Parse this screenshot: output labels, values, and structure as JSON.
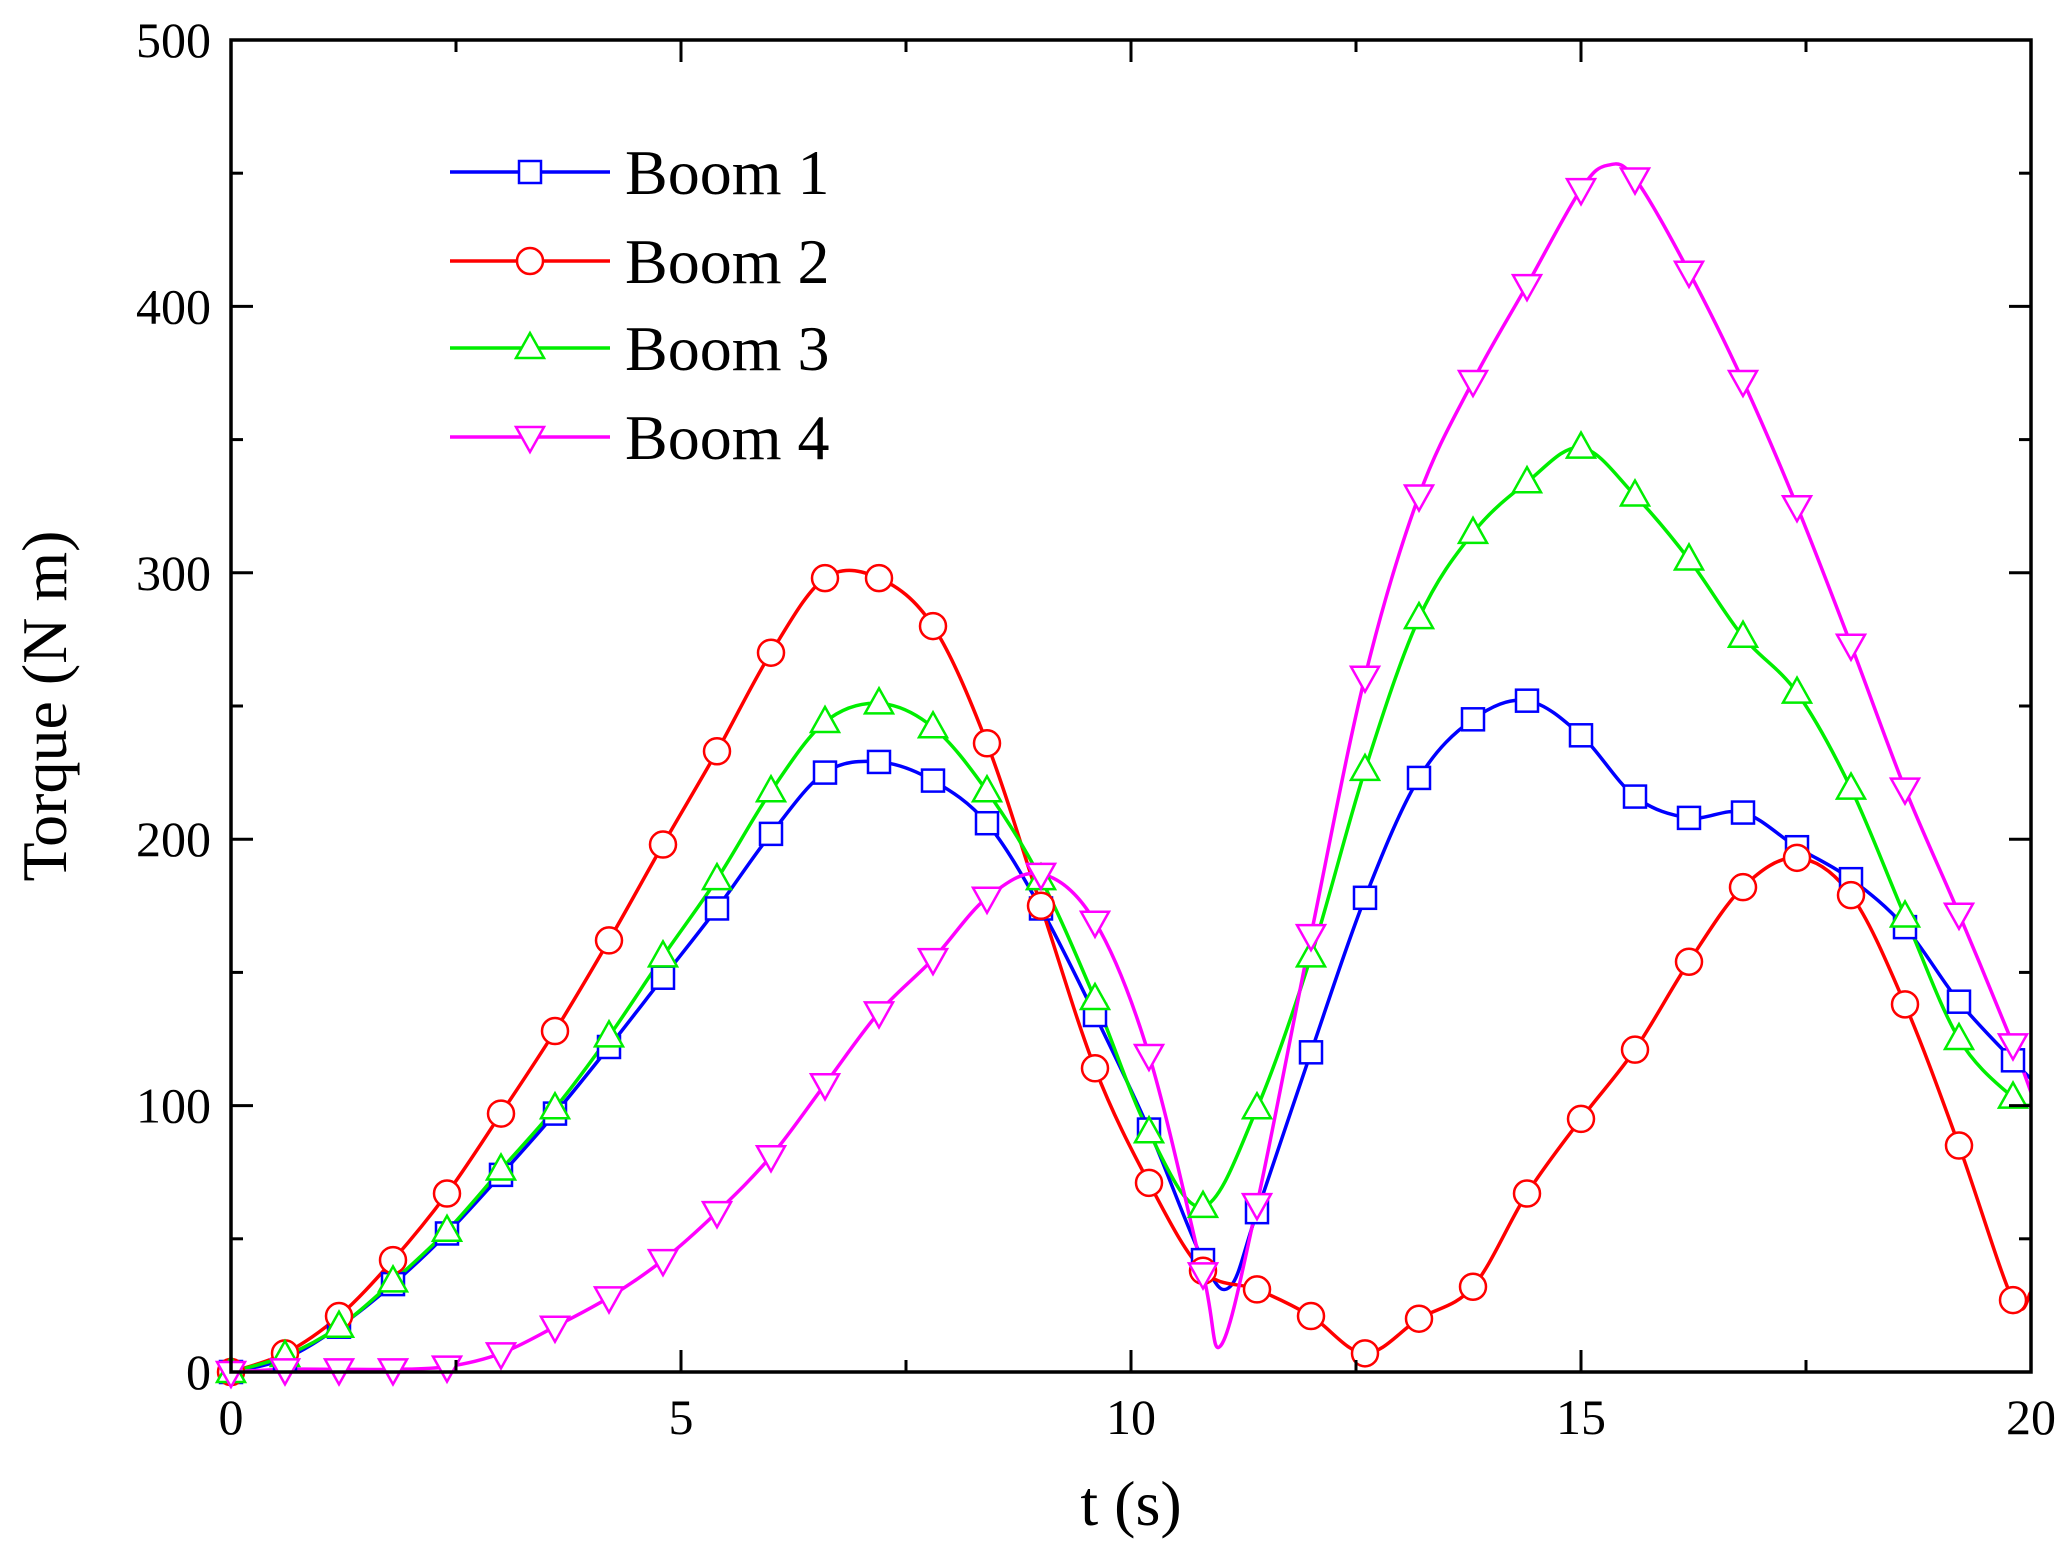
{
  "chart_data": {
    "type": "line",
    "title": "",
    "xlabel": "t (s)",
    "ylabel": "Torque (N m)",
    "xlim": [
      0,
      20
    ],
    "ylim": [
      0,
      500
    ],
    "xticks": [
      0,
      5,
      10,
      15,
      20
    ],
    "xtick_labels": [
      "0",
      "5",
      "10",
      "15",
      "20"
    ],
    "yticks": [
      0,
      100,
      200,
      300,
      400,
      500
    ],
    "ytick_labels": [
      "0",
      "100",
      "200",
      "300",
      "400",
      "500"
    ],
    "grid": false,
    "legend_position": "top-left",
    "marker_interval": 0.6,
    "series": [
      {
        "name": "Boom 1",
        "color": "#0000ff",
        "marker": "square",
        "points": [
          [
            0,
            0
          ],
          [
            0.6,
            5
          ],
          [
            1.2,
            17
          ],
          [
            1.8,
            33
          ],
          [
            2.4,
            52
          ],
          [
            3.0,
            74
          ],
          [
            3.6,
            97
          ],
          [
            4.2,
            122
          ],
          [
            4.8,
            148
          ],
          [
            5.4,
            174
          ],
          [
            6.0,
            202
          ],
          [
            6.6,
            225
          ],
          [
            7.2,
            229
          ],
          [
            7.8,
            222
          ],
          [
            8.4,
            206
          ],
          [
            9.0,
            174
          ],
          [
            9.6,
            134
          ],
          [
            10.2,
            91
          ],
          [
            10.8,
            42
          ],
          [
            11.1,
            32
          ],
          [
            11.4,
            60
          ],
          [
            12.0,
            120
          ],
          [
            12.6,
            178
          ],
          [
            13.2,
            223
          ],
          [
            13.8,
            245
          ],
          [
            14.4,
            252
          ],
          [
            15.0,
            239
          ],
          [
            15.6,
            216
          ],
          [
            16.2,
            208
          ],
          [
            16.8,
            210
          ],
          [
            17.4,
            197
          ],
          [
            18.0,
            185
          ],
          [
            18.6,
            167
          ],
          [
            19.2,
            139
          ],
          [
            19.8,
            117
          ],
          [
            20,
            110
          ]
        ]
      },
      {
        "name": "Boom 2",
        "color": "#ff0000",
        "marker": "circle",
        "points": [
          [
            0,
            0
          ],
          [
            0.6,
            7
          ],
          [
            1.2,
            21
          ],
          [
            1.8,
            42
          ],
          [
            2.4,
            67
          ],
          [
            3.0,
            97
          ],
          [
            3.6,
            128
          ],
          [
            4.2,
            162
          ],
          [
            4.8,
            198
          ],
          [
            5.4,
            233
          ],
          [
            6.0,
            270
          ],
          [
            6.6,
            298
          ],
          [
            7.2,
            298
          ],
          [
            7.8,
            280
          ],
          [
            8.4,
            236
          ],
          [
            9.0,
            175
          ],
          [
            9.6,
            114
          ],
          [
            10.2,
            71
          ],
          [
            10.8,
            38
          ],
          [
            11.4,
            31
          ],
          [
            12.0,
            21
          ],
          [
            12.6,
            7
          ],
          [
            13.2,
            20
          ],
          [
            13.8,
            32
          ],
          [
            14.4,
            67
          ],
          [
            15.0,
            95
          ],
          [
            15.6,
            121
          ],
          [
            16.2,
            154
          ],
          [
            16.8,
            182
          ],
          [
            17.4,
            193
          ],
          [
            18.0,
            179
          ],
          [
            18.6,
            138
          ],
          [
            19.2,
            85
          ],
          [
            19.8,
            27
          ],
          [
            20,
            30
          ]
        ]
      },
      {
        "name": "Boom 3",
        "color": "#00ee00",
        "marker": "triangle-up",
        "points": [
          [
            0,
            0
          ],
          [
            0.6,
            6
          ],
          [
            1.2,
            17
          ],
          [
            1.8,
            34
          ],
          [
            2.4,
            53
          ],
          [
            3.0,
            76
          ],
          [
            3.6,
            99
          ],
          [
            4.2,
            126
          ],
          [
            4.8,
            156
          ],
          [
            5.4,
            185
          ],
          [
            6.0,
            218
          ],
          [
            6.6,
            244
          ],
          [
            7.2,
            251
          ],
          [
            7.8,
            242
          ],
          [
            8.4,
            218
          ],
          [
            9.0,
            185
          ],
          [
            9.6,
            140
          ],
          [
            10.2,
            90
          ],
          [
            10.8,
            62
          ],
          [
            11.4,
            99
          ],
          [
            12.0,
            156
          ],
          [
            12.6,
            226
          ],
          [
            13.2,
            283
          ],
          [
            13.8,
            315
          ],
          [
            14.4,
            334
          ],
          [
            15.0,
            347
          ],
          [
            15.6,
            329
          ],
          [
            16.2,
            305
          ],
          [
            16.8,
            276
          ],
          [
            17.4,
            255
          ],
          [
            18.0,
            219
          ],
          [
            18.6,
            171
          ],
          [
            19.2,
            125
          ],
          [
            19.8,
            103
          ],
          [
            20,
            100
          ]
        ]
      },
      {
        "name": "Boom 4",
        "color": "#ff00ff",
        "marker": "triangle-down",
        "points": [
          [
            0,
            0
          ],
          [
            0.6,
            1
          ],
          [
            1.2,
            1
          ],
          [
            1.8,
            1
          ],
          [
            2.4,
            2
          ],
          [
            3.0,
            7
          ],
          [
            3.6,
            17
          ],
          [
            4.2,
            28
          ],
          [
            4.8,
            42
          ],
          [
            5.4,
            60
          ],
          [
            6.0,
            81
          ],
          [
            6.6,
            108
          ],
          [
            7.2,
            135
          ],
          [
            7.8,
            155
          ],
          [
            8.4,
            178
          ],
          [
            9.0,
            187
          ],
          [
            9.6,
            169
          ],
          [
            10.2,
            119
          ],
          [
            10.8,
            37
          ],
          [
            11.0,
            10
          ],
          [
            11.4,
            63
          ],
          [
            12.0,
            164
          ],
          [
            12.6,
            261
          ],
          [
            13.2,
            329
          ],
          [
            13.8,
            372
          ],
          [
            14.4,
            408
          ],
          [
            15.0,
            444
          ],
          [
            15.3,
            453
          ],
          [
            15.6,
            448
          ],
          [
            16.2,
            413
          ],
          [
            16.8,
            372
          ],
          [
            17.4,
            325
          ],
          [
            18.0,
            273
          ],
          [
            18.6,
            219
          ],
          [
            19.2,
            172
          ],
          [
            19.8,
            123
          ],
          [
            20,
            105
          ]
        ]
      }
    ]
  }
}
